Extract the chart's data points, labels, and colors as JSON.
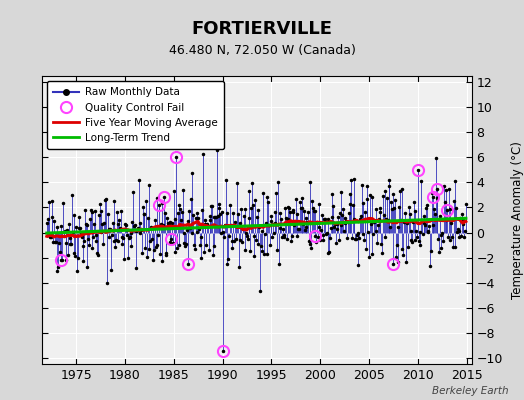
{
  "title": "FORTIERVILLE",
  "subtitle": "46.480 N, 72.050 W (Canada)",
  "ylabel": "Temperature Anomaly (°C)",
  "watermark": "Berkeley Earth",
  "xlim": [
    1971.5,
    2015.5
  ],
  "ylim": [
    -10.5,
    12.5
  ],
  "yticks": [
    -10,
    -8,
    -6,
    -4,
    -2,
    0,
    2,
    4,
    6,
    8,
    10,
    12
  ],
  "xticks": [
    1975,
    1980,
    1985,
    1990,
    1995,
    2000,
    2005,
    2010,
    2015
  ],
  "plot_bg": "#f0f0f0",
  "fig_bg": "#d8d8d8",
  "grid_color": "#ffffff",
  "raw_line_color": "#3333bb",
  "raw_dot_color": "#000000",
  "qc_fail_color": "#ff44ff",
  "moving_avg_color": "#dd0000",
  "trend_color": "#00bb00",
  "seed": 42,
  "years_start": 1972,
  "years_end": 2014
}
